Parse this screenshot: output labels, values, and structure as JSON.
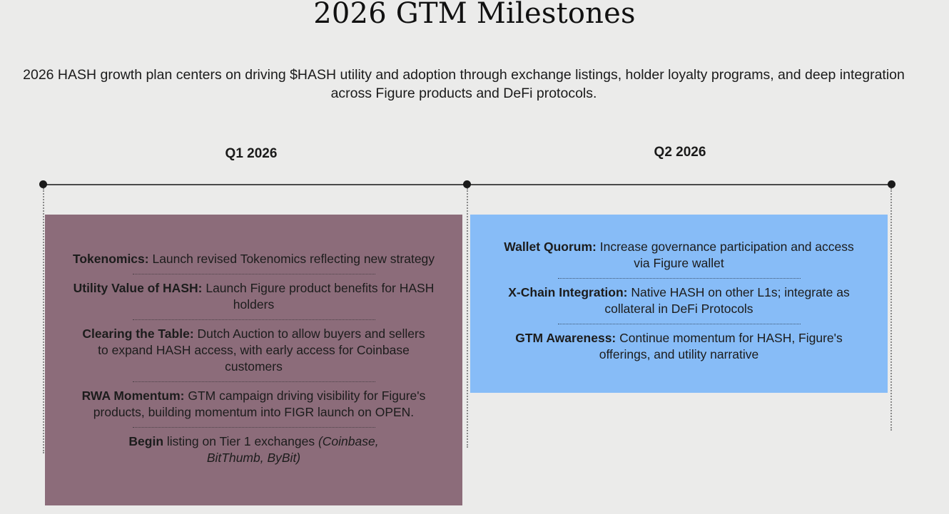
{
  "title": "2026 GTM Milestones",
  "subtitle": "2026 HASH growth plan centers on driving $HASH utility and adoption through exchange listings, holder loyalty programs, and deep integration across Figure products and DeFi protocols.",
  "colors": {
    "background": "#ebebea",
    "q1_box": "#8c6c7a",
    "q2_box": "#87bcf7"
  },
  "quarters": [
    {
      "label": "Q1 2026",
      "items": [
        {
          "lead": "Tokenomics:",
          "text": " Launch revised Tokenomics reflecting new strategy",
          "tail_italic": ""
        },
        {
          "lead": "Utility Value of HASH:",
          "text": " Launch Figure product benefits for HASH holders",
          "tail_italic": ""
        },
        {
          "lead": "Clearing the Table:",
          "text": " Dutch Auction to allow buyers and sellers to expand HASH access, with early access for Coinbase customers",
          "tail_italic": ""
        },
        {
          "lead": "RWA Momentum:",
          "text": " GTM campaign driving visibility for Figure's products, building momentum into FIGR launch on OPEN.",
          "tail_italic": ""
        },
        {
          "lead": "Begin",
          "text": " listing on Tier 1 exchanges ",
          "tail_italic": "(Coinbase, BitThumb, ByBit)"
        }
      ]
    },
    {
      "label": "Q2 2026",
      "items": [
        {
          "lead": "Wallet Quorum:",
          "text": " Increase governance participation and access via Figure wallet",
          "tail_italic": ""
        },
        {
          "lead": "X-Chain Integration:",
          "text": " Native HASH on other L1s; integrate as collateral in DeFi Protocols",
          "tail_italic": ""
        },
        {
          "lead": "GTM Awareness:",
          "text": " Continue momentum for HASH, Figure's offerings, and utility narrative",
          "tail_italic": ""
        }
      ]
    }
  ]
}
